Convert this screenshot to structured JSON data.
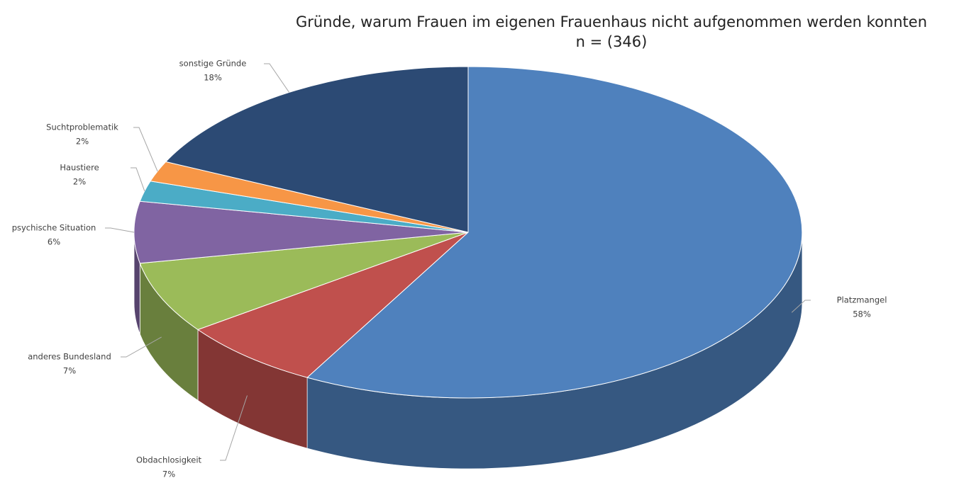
{
  "chart_data": {
    "type": "pie3d",
    "title": "Gründe, warum Frauen im eigenen Frauenhaus nicht aufgenommen werden konnten",
    "subtitle": "n = (346)",
    "categories": [
      "Platzmangel",
      "Obdachlosigkeit",
      "anderes Bundesland",
      "psychische Situation",
      "Haustiere",
      "Suchtproblematik",
      "sonstige Gründe"
    ],
    "values": [
      58,
      7,
      7,
      6,
      2,
      2,
      18
    ],
    "value_labels": [
      "58%",
      "7%",
      "7%",
      "6%",
      "2%",
      "2%",
      "18%"
    ],
    "colors": [
      "#4f81bd",
      "#c0504d",
      "#9bbb59",
      "#8064a2",
      "#4bacc6",
      "#f79646",
      "#2c4a74"
    ]
  }
}
